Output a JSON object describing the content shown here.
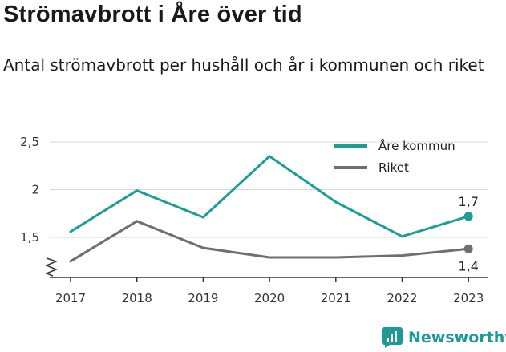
{
  "chart_data": {
    "type": "line",
    "title": "Strömavbrott i Åre över tid",
    "subtitle": "Antal strömavbrott per hushåll och år i kommunen och riket",
    "xlabel": "",
    "ylabel": "",
    "x": [
      "2017",
      "2018",
      "2019",
      "2020",
      "2021",
      "2022",
      "2023"
    ],
    "ylim": [
      1.2,
      2.5
    ],
    "yticks": [
      1.5,
      2,
      2.5
    ],
    "ytick_labels": [
      "1,5",
      "2",
      "2,5"
    ],
    "axis_break": true,
    "grid": true,
    "legend_position": "top-right",
    "series": [
      {
        "name": "Åre kommun",
        "color": "#1a9e97",
        "values": [
          1.56,
          1.99,
          1.71,
          2.35,
          1.87,
          1.51,
          1.72
        ],
        "end_label": "1,7"
      },
      {
        "name": "Riket",
        "color": "#6e6e73",
        "values": [
          1.25,
          1.67,
          1.39,
          1.29,
          1.29,
          1.31,
          1.38
        ],
        "end_label": "1,4"
      }
    ]
  },
  "brand": {
    "name": "Newsworthy",
    "icon": "newsworthy-logo-icon",
    "color": "#1d9a96"
  }
}
